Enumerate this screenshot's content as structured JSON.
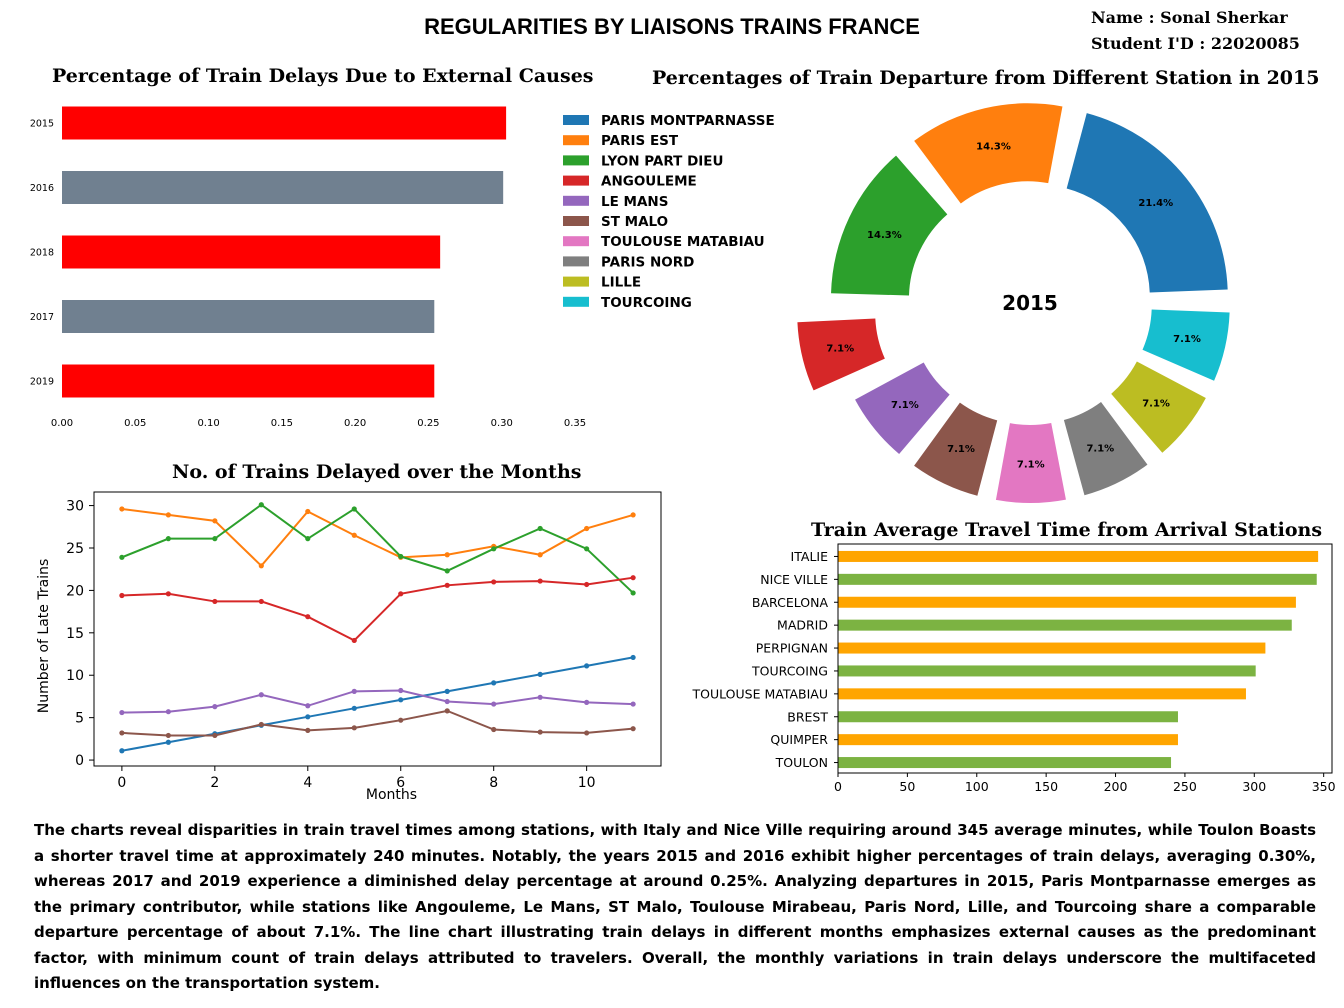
{
  "header": {
    "title": "REGULARITIES BY LIAISONS TRAINS FRANCE",
    "name_line": "Name : Sonal Sherkar",
    "id_line": "Student I'D : 22020085"
  },
  "summary": "The charts reveal disparities in train travel times among stations, with Italy and Nice Ville requiring around 345 average minutes, while Toulon Boasts a shorter travel time at approximately 240 minutes. Notably, the years 2015 and 2016 exhibit higher percentages of train delays, averaging 0.30%, whereas 2017 and 2019 experience a diminished delay percentage at around 0.25%. Analyzing departures in 2015, Paris Montparnasse emerges as the primary contributor, while stations like Angouleme, Le Mans, ST Malo, Toulouse Mirabeau, Paris Nord, Lille, and Tourcoing share a comparable departure percentage of about 7.1%. The line chart illustrating train delays in different months emphasizes external causes as the predominant factor, with minimum count of train delays attributed to travelers. Overall, the monthly variations in train delays underscore the multifaceted influences on the transportation  system.",
  "chart_data": [
    {
      "id": "delays",
      "type": "bar",
      "orientation": "horizontal",
      "title": "Percentage of Train Delays Due to External Causes",
      "xlabel": "",
      "ylabel": "",
      "categories": [
        "2015",
        "2016",
        "2018",
        "2017",
        "2019"
      ],
      "values": [
        0.303,
        0.301,
        0.258,
        0.254,
        0.254
      ],
      "colors": [
        "#ff0000",
        "#708090",
        "#ff0000",
        "#708090",
        "#ff0000"
      ],
      "xlim": [
        0,
        0.35
      ],
      "xticks": [
        "0.00",
        "0.05",
        "0.10",
        "0.15",
        "0.20",
        "0.25",
        "0.30",
        "0.35"
      ],
      "grid": false
    },
    {
      "id": "departures",
      "type": "pie",
      "style": "donut",
      "title": "Percentages of Train Departure from Different Station in 2015",
      "center_label": "2015",
      "legend_position": "left",
      "labels": [
        "PARIS MONTPARNASSE",
        "PARIS EST",
        "LYON PART DIEU",
        "ANGOULEME",
        "LE MANS",
        "ST MALO",
        "TOULOUSE MATABIAU",
        "PARIS NORD",
        "LILLE",
        "TOURCOING"
      ],
      "values": [
        21.4,
        14.3,
        14.3,
        7.1,
        7.1,
        7.1,
        7.1,
        7.1,
        7.1,
        7.1
      ],
      "value_labels": [
        "21.4%",
        "14.3%",
        "14.3%",
        "7.1%",
        "7.1%",
        "7.1%",
        "7.1%",
        "7.1%",
        "7.1%",
        "7.1%"
      ],
      "colors": [
        "#1f77b4",
        "#ff7f0e",
        "#2ca02c",
        "#d62728",
        "#9467bd",
        "#8c564b",
        "#e377c2",
        "#7f7f7f",
        "#bcbd22",
        "#17becf"
      ],
      "exploded": [
        "ANGOULEME"
      ]
    },
    {
      "id": "monthly",
      "type": "line",
      "title": "No. of Trains Delayed over the Months",
      "xlabel": "Months",
      "ylabel": "Number of Late Trains",
      "x": [
        0,
        1,
        2,
        3,
        4,
        5,
        6,
        7,
        8,
        9,
        10,
        11
      ],
      "xlim": [
        -0.6,
        11.6
      ],
      "ylim": [
        -0.7,
        31.6
      ],
      "xticks": [
        0,
        2,
        4,
        6,
        8,
        10
      ],
      "yticks": [
        0,
        5,
        10,
        15,
        20,
        25,
        30
      ],
      "grid": false,
      "series": [
        {
          "color": "#1f77b4",
          "values": [
            1.1,
            2.1,
            3.1,
            4.1,
            5.1,
            6.1,
            7.1,
            8.1,
            9.1,
            10.1,
            11.1,
            12.1
          ]
        },
        {
          "color": "#ff7f0e",
          "values": [
            29.6,
            28.9,
            28.2,
            22.9,
            29.3,
            26.5,
            23.9,
            24.2,
            25.2,
            24.2,
            27.3,
            28.9
          ]
        },
        {
          "color": "#2ca02c",
          "values": [
            23.9,
            26.1,
            26.1,
            30.1,
            26.1,
            29.6,
            24.0,
            22.3,
            24.9,
            27.3,
            24.9,
            19.7
          ]
        },
        {
          "color": "#d62728",
          "values": [
            19.4,
            19.6,
            18.7,
            18.7,
            16.9,
            14.1,
            19.6,
            20.6,
            21.0,
            21.1,
            20.7,
            21.5
          ]
        },
        {
          "color": "#9467bd",
          "values": [
            5.6,
            5.7,
            6.3,
            7.7,
            6.4,
            8.1,
            8.2,
            6.9,
            6.6,
            7.4,
            6.8,
            6.6
          ]
        },
        {
          "color": "#8c564b",
          "values": [
            3.2,
            2.9,
            2.9,
            4.2,
            3.5,
            3.8,
            4.7,
            5.8,
            3.6,
            3.3,
            3.2,
            3.7
          ]
        }
      ]
    },
    {
      "id": "travel",
      "type": "bar",
      "orientation": "horizontal",
      "title": "Train Average Travel Time from Arrival Stations",
      "xlabel": "",
      "ylabel": "",
      "categories": [
        "ITALIE",
        "NICE VILLE",
        "BARCELONA",
        "MADRID",
        "PERPIGNAN",
        "TOURCOING",
        "TOULOUSE MATABIAU",
        "BREST",
        "QUIMPER",
        "TOULON"
      ],
      "values": [
        346,
        345,
        330,
        327,
        308,
        301,
        294,
        245,
        245,
        240
      ],
      "colors": [
        "#ffa500",
        "#7cb342",
        "#ffa500",
        "#7cb342",
        "#ffa500",
        "#7cb342",
        "#ffa500",
        "#7cb342",
        "#ffa500",
        "#7cb342"
      ],
      "xlim": [
        0,
        356
      ],
      "xticks": [
        0,
        50,
        100,
        150,
        200,
        250,
        300,
        350
      ],
      "grid": false
    }
  ]
}
